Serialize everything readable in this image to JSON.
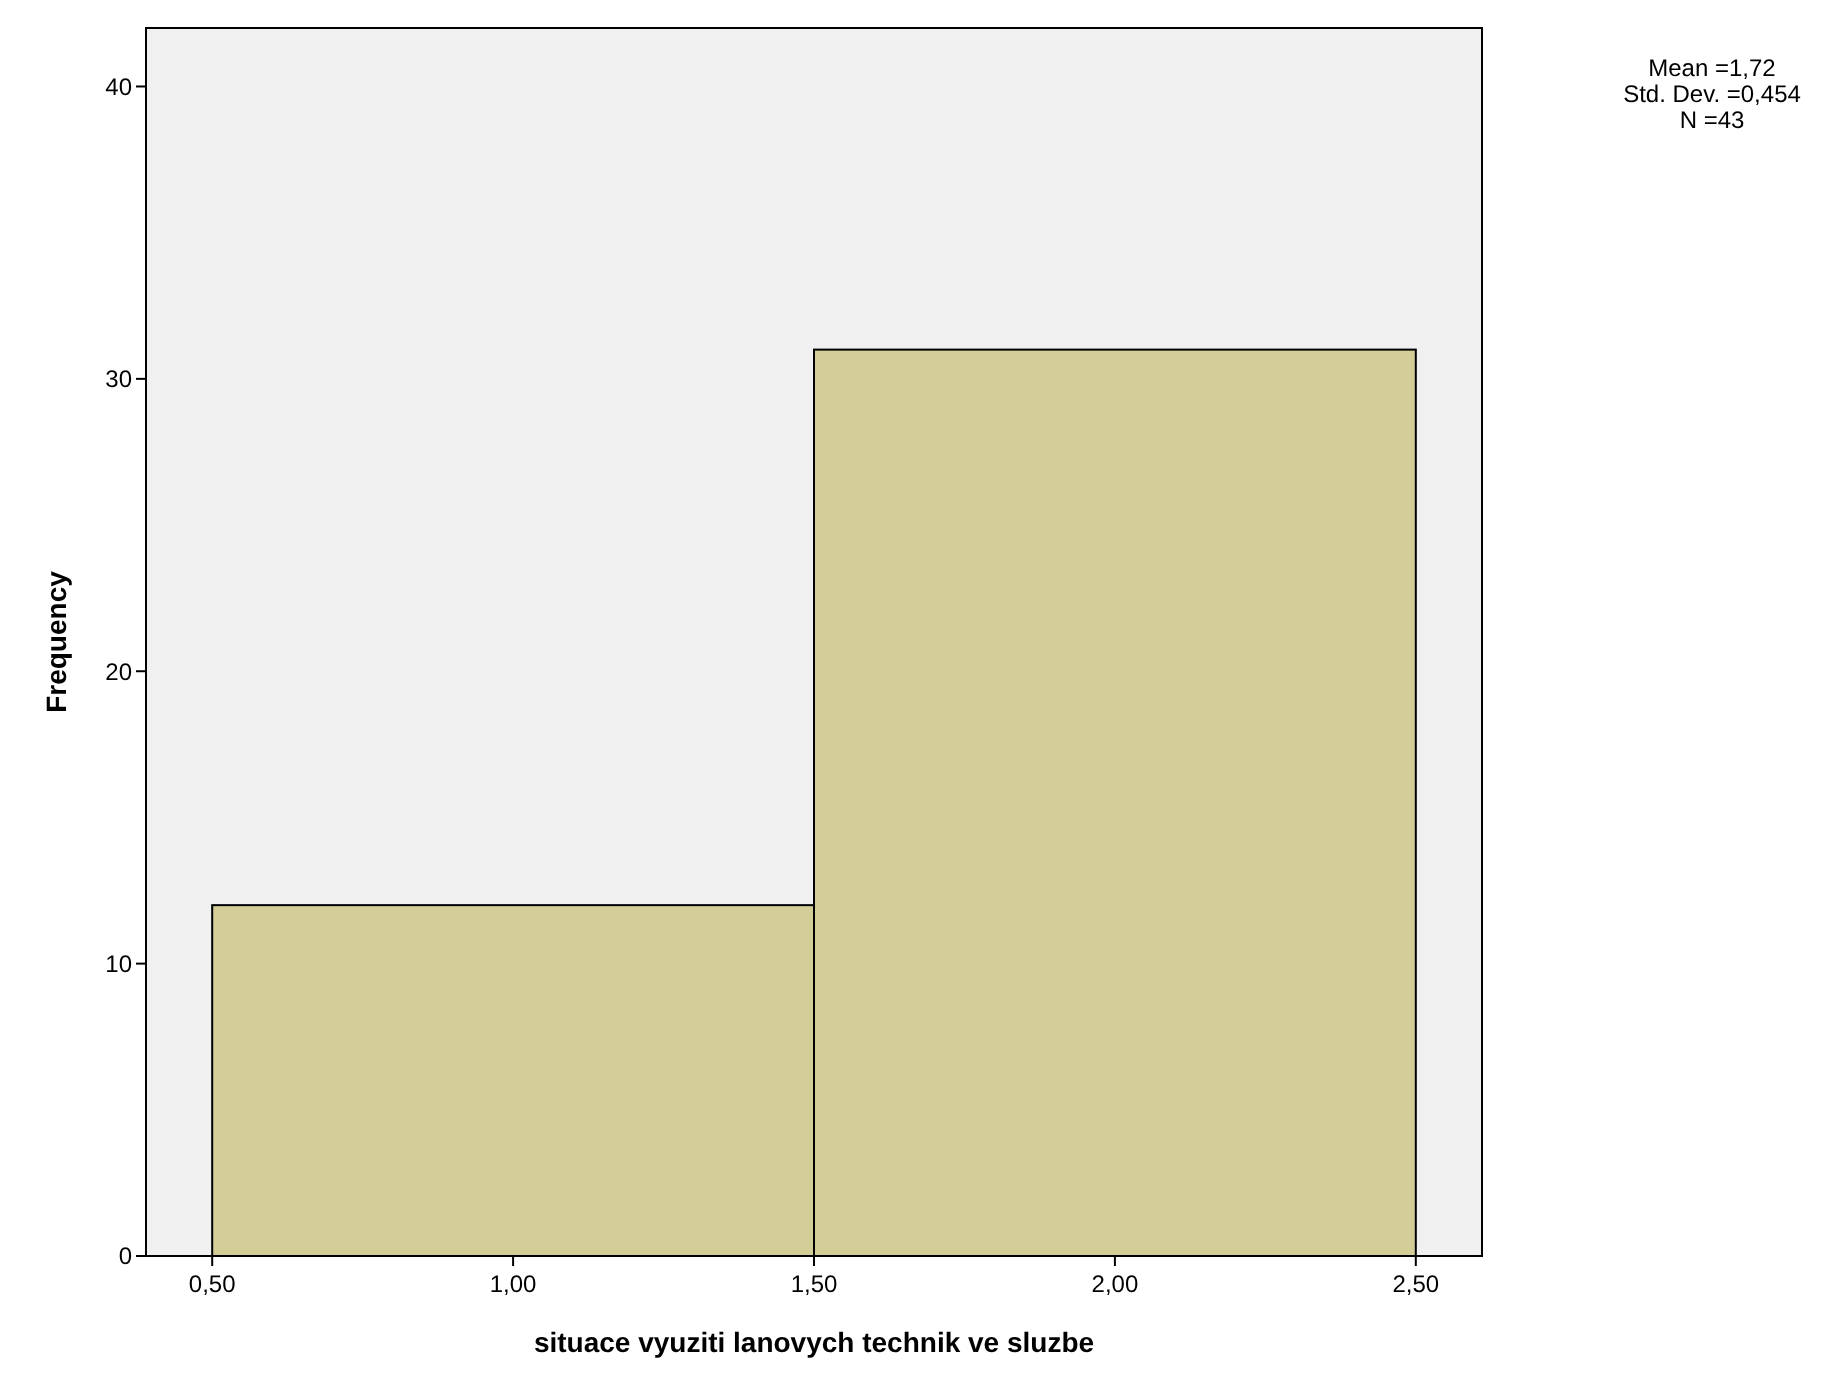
{
  "chart_data": {
    "type": "histogram",
    "xlabel": "situace vyuziti lanovych technik ve sluzbe",
    "ylabel": "Frequency",
    "bins": [
      0.5,
      1.5,
      2.5
    ],
    "values": [
      12,
      31
    ],
    "color": "#d3cd98",
    "xlim": [
      0.39,
      2.61
    ],
    "xticks": [
      {
        "value": 0.5,
        "label": "0,50"
      },
      {
        "value": 1,
        "label": "1,00"
      },
      {
        "value": 1.5,
        "label": "1,50"
      },
      {
        "value": 2,
        "label": "2,00"
      },
      {
        "value": 2.5,
        "label": "2,50"
      }
    ],
    "ylim": [
      0,
      42
    ],
    "yticks": [
      0,
      10,
      20,
      30,
      40
    ],
    "grid": false,
    "annotations": [
      "Mean =1,72",
      "Std. Dev. =0,454",
      "N =43"
    ]
  }
}
